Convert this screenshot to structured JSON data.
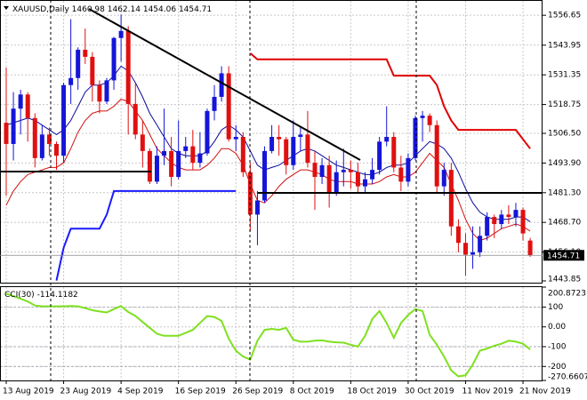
{
  "chart_data": [
    {
      "type": "candlestick",
      "title": "XAUUSD,Daily",
      "categories": [
        "13 Aug 2019",
        null,
        null,
        null,
        null,
        null,
        null,
        null,
        "23 Aug 2019",
        null,
        null,
        null,
        null,
        null,
        null,
        null,
        "4 Sep 2019",
        null,
        null,
        null,
        null,
        null,
        null,
        null,
        "16 Sep 2019",
        null,
        null,
        null,
        null,
        null,
        null,
        null,
        "26 Sep 2019",
        null,
        null,
        null,
        null,
        null,
        null,
        null,
        "8 Oct 2019",
        null,
        null,
        null,
        null,
        null,
        null,
        null,
        "18 Oct 2019",
        null,
        null,
        null,
        null,
        null,
        null,
        null,
        "30 Oct 2019",
        null,
        null,
        null,
        null,
        null,
        null,
        null,
        "11 Nov 2019",
        null,
        null,
        null,
        null,
        null,
        null,
        null,
        "21 Nov 2019",
        null
      ],
      "open": [
        1511,
        1502,
        1517,
        1523,
        1513,
        1496,
        1506,
        1502,
        1497,
        1527,
        1530,
        1542,
        1539,
        1527,
        1520,
        1529,
        1547,
        1550,
        1519,
        1506,
        1499,
        1486,
        1497,
        1499,
        1488,
        1499,
        1501,
        1494,
        1498,
        1516,
        1522,
        1532,
        1504,
        1505,
        1490,
        1472,
        1478,
        1499,
        1505,
        1504,
        1493,
        1505,
        1506,
        1494,
        1488,
        1493,
        1481,
        1490,
        1491,
        1490,
        1484,
        1487,
        1491,
        1503,
        1505,
        1492,
        1486,
        1496,
        1513,
        1514,
        1510,
        1484,
        1491,
        1467,
        1460,
        1455,
        1456,
        1463,
        1471,
        1468,
        1472,
        1471,
        1474,
        1460.98
      ],
      "high": [
        1534.5,
        1524,
        1525,
        1524,
        1515,
        1510,
        1509,
        1503,
        1528,
        1555,
        1543,
        1551,
        1541,
        1529,
        1530,
        1547.5,
        1557,
        1552,
        1528,
        1512,
        1500,
        1501,
        1517,
        1505,
        1512,
        1505,
        1508,
        1507,
        1517,
        1527,
        1535,
        1535,
        1510,
        1507,
        1494,
        1482,
        1501,
        1510,
        1510,
        1505,
        1512,
        1509,
        1516,
        1499,
        1496,
        1497,
        1495,
        1500,
        1495,
        1494,
        1490,
        1496,
        1505,
        1518,
        1507,
        1497,
        1498,
        1514,
        1516,
        1515,
        1512,
        1494,
        1494,
        1470,
        1464,
        1467,
        1467,
        1473,
        1472,
        1474,
        1476,
        1477,
        1475,
        1462.14
      ],
      "low": [
        1480,
        1495,
        1506,
        1503,
        1492,
        1495,
        1497,
        1491,
        1494,
        1519,
        1525,
        1536,
        1520,
        1515,
        1519,
        1525,
        1537,
        1506,
        1504,
        1492,
        1485,
        1485,
        1493,
        1484,
        1487,
        1496,
        1491,
        1492,
        1497,
        1512,
        1520,
        1503,
        1499,
        1488,
        1465,
        1459,
        1477,
        1498,
        1497,
        1489,
        1491,
        1499,
        1492,
        1474,
        1485,
        1475,
        1480,
        1484,
        1483,
        1481,
        1481,
        1485,
        1489,
        1501,
        1490,
        1482,
        1484,
        1495,
        1503,
        1507,
        1481,
        1480,
        1463,
        1456,
        1446,
        1449,
        1454,
        1461,
        1462,
        1466,
        1468,
        1467,
        1461,
        1454.06
      ],
      "close": [
        1502,
        1517,
        1523,
        1513,
        1496,
        1506,
        1502,
        1497,
        1527,
        1530,
        1542,
        1539,
        1527,
        1520,
        1529,
        1547,
        1550,
        1519,
        1506,
        1499,
        1486,
        1497,
        1499,
        1488,
        1499,
        1501,
        1494,
        1498,
        1516,
        1522,
        1532,
        1504,
        1505,
        1490,
        1472,
        1478,
        1499,
        1505,
        1504,
        1493,
        1505,
        1506,
        1494,
        1488,
        1493,
        1481,
        1490,
        1491,
        1490,
        1484,
        1487,
        1491,
        1503,
        1505,
        1492,
        1486,
        1496,
        1513,
        1514,
        1510,
        1484,
        1491,
        1467,
        1460,
        1455,
        1456,
        1463,
        1471,
        1468,
        1472,
        1471,
        1474,
        1464,
        1454.71
      ],
      "up_color": "#1515d8",
      "down_color": "#e01010",
      "series": [
        {
          "color": "#0a0a9a",
          "width": 1,
          "values": [
            1510,
            1511,
            1512,
            1513,
            1512,
            1510,
            1508,
            1506,
            1508,
            1512,
            1518,
            1524,
            1527,
            1527,
            1528,
            1531,
            1535,
            1533,
            1528,
            1522,
            1515,
            1510,
            1505,
            1500,
            1498,
            1497,
            1497,
            1497,
            1499,
            1503,
            1508,
            1510,
            1508,
            1505,
            1499,
            1493,
            1491,
            1492,
            1493,
            1495,
            1497,
            1499,
            1500,
            1499,
            1497,
            1495,
            1493,
            1492,
            1491,
            1490,
            1489,
            1489,
            1490,
            1492,
            1493,
            1493,
            1494,
            1497,
            1500,
            1503,
            1502,
            1500,
            1496,
            1490,
            1483,
            1477,
            1473,
            1471,
            1470,
            1470,
            1470,
            1471,
            1471,
            1469
          ]
        },
        {
          "color": "#d01010",
          "width": 1,
          "values": [
            1476,
            1482,
            1486,
            1489,
            1490,
            1491,
            1492,
            1492,
            1494,
            1500,
            1507,
            1512,
            1515,
            1516,
            1516,
            1518,
            1521,
            1520,
            1516,
            1512,
            1506,
            1500,
            1497,
            1494,
            1492,
            1491,
            1491,
            1491,
            1493,
            1496,
            1500,
            1500,
            1498,
            1493,
            1485,
            1478,
            1477,
            1480,
            1484,
            1487,
            1489,
            1491,
            1491,
            1490,
            1489,
            1487,
            1486,
            1486,
            1486,
            1485,
            1485,
            1485,
            1486,
            1488,
            1489,
            1488,
            1488,
            1490,
            1494,
            1498,
            1495,
            1492,
            1485,
            1478,
            1470,
            1464,
            1461,
            1462,
            1464,
            1466,
            1467,
            1468,
            1467,
            1465
          ]
        },
        {
          "color": "#e00000",
          "width": 2,
          "values": [
            null,
            null,
            null,
            null,
            null,
            null,
            null,
            null,
            null,
            null,
            null,
            null,
            null,
            null,
            null,
            null,
            null,
            null,
            null,
            null,
            null,
            null,
            null,
            null,
            null,
            null,
            null,
            null,
            null,
            null,
            null,
            null,
            null,
            null,
            1540.5,
            1537.9,
            1537.9,
            1537.9,
            1537.9,
            1537.9,
            1537.9,
            1537.9,
            1537.9,
            1537.9,
            1537.9,
            1537.9,
            1537.9,
            1537.9,
            1537.9,
            1537.9,
            1537.9,
            1537.9,
            1537.9,
            1537.9,
            1531,
            1531,
            1531,
            1531,
            1531,
            1531,
            1527,
            1518,
            1512,
            1508,
            1508,
            1508,
            1508,
            1508,
            1508,
            1508,
            1508,
            1508,
            1504,
            1500
          ]
        },
        {
          "color": "#1a1aff",
          "width": 2,
          "values": [
            null,
            null,
            null,
            null,
            null,
            null,
            null,
            1444,
            1458,
            1466,
            1466,
            1466,
            1466,
            1466,
            1472,
            1482,
            1482,
            1482,
            1482,
            1482,
            1482,
            1482,
            1482,
            1482,
            1482,
            1482,
            1482,
            1482,
            1482,
            1482,
            1482,
            1482,
            1482,
            null,
            null,
            null,
            null,
            null,
            null,
            null,
            null,
            null,
            null,
            null,
            null,
            null,
            null,
            null,
            null,
            null,
            null,
            null,
            null,
            null,
            null,
            null,
            null,
            null,
            null,
            null,
            null,
            null,
            null,
            null,
            null,
            null,
            null,
            null,
            null,
            null,
            null,
            null,
            null,
            null
          ]
        }
      ],
      "ylim": [
        1443.1,
        1562.75
      ],
      "yticks": [
        1556.65,
        1543.95,
        1531.35,
        1518.75,
        {
          "value": 1506.5,
          "label": "1506.50"
        },
        {
          "value": 1493.9,
          "label": "1493.90"
        },
        {
          "value": 1481.3,
          "label": "1481.30"
        },
        {
          "value": 1468.7,
          "label": "1468.70"
        },
        {
          "value": 1456.1,
          "label": "1456.10"
        },
        1443.85
      ],
      "grid": true
    },
    {
      "type": "line",
      "title": "CCI(30)",
      "color": "#7fe020",
      "values": [
        168,
        155,
        142,
        128,
        108,
        104,
        104,
        104,
        104,
        105,
        104,
        95,
        84,
        78,
        73,
        90,
        105,
        75,
        55,
        25,
        -5,
        -35,
        -45,
        -45,
        -45,
        -30,
        -15,
        20,
        55,
        50,
        30,
        -60,
        -120,
        -150,
        -165,
        -70,
        -15,
        -10,
        -15,
        -5,
        -65,
        -75,
        -75,
        -70,
        -68,
        -75,
        -78,
        -80,
        -90,
        -100,
        -45,
        40,
        80,
        20,
        -55,
        20,
        60,
        90,
        80,
        -40,
        -90,
        -150,
        -220,
        -250,
        -245,
        -190,
        -120,
        -110,
        -95,
        -85,
        -70,
        -75,
        -85,
        -114.1182
      ],
      "ylim": [
        -270.6607,
        200.8723
      ],
      "yticks": [
        200.8723,
        100,
        {
          "value": 0,
          "label": "0.00"
        },
        -100,
        -200,
        -270.6607
      ],
      "levels": [
        100,
        -100,
        -200
      ],
      "grid": true
    }
  ]
}
